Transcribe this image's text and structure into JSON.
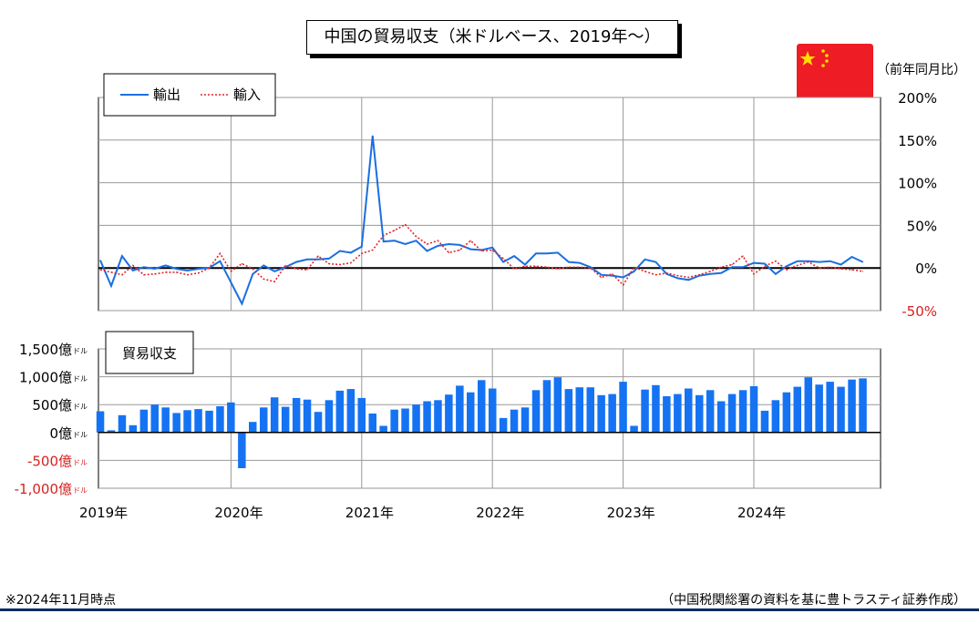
{
  "title": "中国の貿易収支（米ドルベース、2019年〜）",
  "note": "※2024年11月時点",
  "source": "（中国税関総署の資料を基に豊トラスティ証券作成）",
  "colors": {
    "export": "#1a6fe0",
    "import": "#e0262b",
    "bar": "#1573f3",
    "flag_red": "#ee1c25",
    "flag_star": "#ffde00",
    "negative_label": "#d62121"
  },
  "chart_data": [
    {
      "type": "line",
      "unit": "（前年同月比）",
      "legend_location": "top-left",
      "grid": true,
      "ylim": [
        -50,
        200
      ],
      "y_ticks": [
        {
          "v": 200,
          "label": "200%"
        },
        {
          "v": 150,
          "label": "150%"
        },
        {
          "v": 100,
          "label": "100%"
        },
        {
          "v": 50,
          "label": "50%"
        },
        {
          "v": 0,
          "label": "0%"
        },
        {
          "v": -50,
          "label": "-50%"
        }
      ],
      "x_start": "2019-01",
      "series": [
        {
          "name": "輸出",
          "style": "solid",
          "values": [
            9,
            -21,
            14,
            -3,
            1,
            -1,
            3,
            -1,
            -3,
            -1,
            0,
            8,
            -17,
            -42,
            -7,
            3,
            -4,
            1,
            7,
            10,
            10,
            11,
            20,
            18,
            25,
            155,
            31,
            32,
            28,
            32,
            20,
            26,
            28,
            27,
            22,
            21,
            24,
            7,
            14,
            4,
            17,
            17,
            18,
            7,
            6,
            1,
            -8,
            -9,
            -11,
            -4,
            10,
            7,
            -7,
            -12,
            -14,
            -9,
            -7,
            -6,
            1,
            1,
            6,
            5,
            -7,
            2,
            8,
            8,
            7,
            8,
            4,
            13,
            7
          ]
        },
        {
          "name": "輸入",
          "style": "dotted",
          "values": [
            -2,
            -5,
            -8,
            3,
            -8,
            -7,
            -5,
            -5,
            -8,
            -6,
            0,
            17,
            -4,
            5,
            -1,
            -13,
            -16,
            3,
            -1,
            -2,
            14,
            5,
            4,
            6,
            17,
            21,
            38,
            44,
            51,
            37,
            28,
            32,
            18,
            21,
            32,
            20,
            21,
            11,
            -1,
            2,
            2,
            1,
            -1,
            1,
            1,
            0,
            -11,
            -7,
            -20,
            1,
            -4,
            -8,
            -6,
            -9,
            -11,
            -8,
            -4,
            1,
            4,
            14,
            -7,
            2,
            8,
            -2,
            3,
            7,
            0,
            1,
            -1,
            -2,
            -4
          ]
        }
      ]
    },
    {
      "type": "bar",
      "panel_label": "貿易収支",
      "unit": "億ドル",
      "grid": true,
      "ylim": [
        -1000,
        1500
      ],
      "y_ticks": [
        {
          "v": 1500,
          "num": "1,500億",
          "unit": "ドル"
        },
        {
          "v": 1000,
          "num": "1,000億",
          "unit": "ドル"
        },
        {
          "v": 500,
          "num": "500億",
          "unit": "ドル"
        },
        {
          "v": 0,
          "num": "0億",
          "unit": "ドル"
        },
        {
          "v": -500,
          "num": "-500億",
          "unit": "ドル"
        },
        {
          "v": -1000,
          "num": "-1,000億",
          "unit": "ドル"
        }
      ],
      "x_start": "2019-01",
      "x_labels": [
        "2019年",
        "2020年",
        "2021年",
        "2022年",
        "2023年",
        "2024年"
      ],
      "values": [
        380,
        40,
        310,
        130,
        410,
        500,
        450,
        350,
        400,
        420,
        390,
        470,
        540,
        -640,
        190,
        450,
        630,
        460,
        620,
        590,
        370,
        580,
        750,
        780,
        620,
        340,
        120,
        410,
        430,
        500,
        560,
        580,
        680,
        840,
        720,
        940,
        790,
        260,
        410,
        450,
        760,
        940,
        990,
        780,
        810,
        810,
        670,
        690,
        910,
        120,
        770,
        850,
        650,
        690,
        790,
        670,
        760,
        560,
        690,
        760,
        830,
        390,
        580,
        720,
        820,
        990,
        860,
        910,
        820,
        950,
        970
      ]
    }
  ]
}
